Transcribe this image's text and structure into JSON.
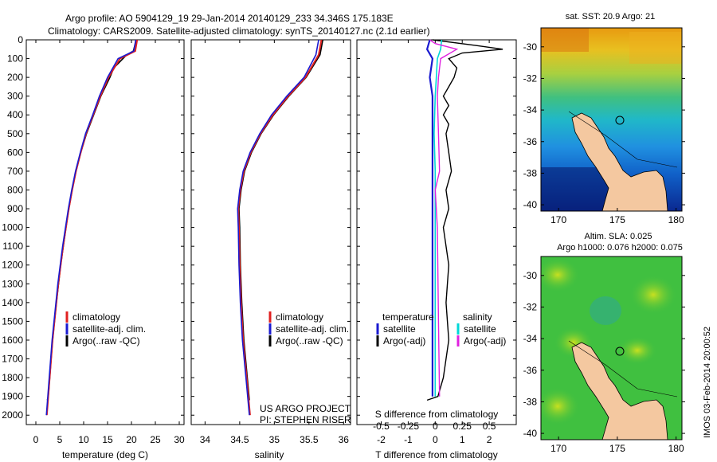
{
  "header": {
    "line1": "Argo profile: AO 5904129_19 29-Jan-2014 20140129_233 34.346S 175.183E",
    "line2": "Climatology: CARS2009. Satellite-adjusted climatology: synTS_20140127.nc (2.1d earlier)"
  },
  "colors": {
    "climatology": "#e02020",
    "satellite": "#1a1ad0",
    "argo": "#000000",
    "sal_satellite": "#00d8d8",
    "sal_argo": "#e020e0"
  },
  "panels": {
    "temperature": {
      "xlabel": "temperature (deg C)",
      "xticks": [
        "0",
        "5",
        "10",
        "15",
        "20",
        "25",
        "30"
      ],
      "legend": [
        "climatology",
        "satellite-adj. clim.",
        "Argo(..raw -QC)"
      ]
    },
    "salinity": {
      "xlabel": "salinity",
      "xticks": [
        "34",
        "34.5",
        "35",
        "35.5",
        "36"
      ],
      "legend": [
        "climatology",
        "satellite-adj. clim.",
        "Argo(..raw -QC)"
      ],
      "credit1": "US ARGO PROJECT",
      "credit2": "PI: STEPHEN RISER"
    },
    "difference": {
      "top_label": "S difference from climatology",
      "top_ticks": [
        "-0.5",
        "-0.25",
        "0",
        "0.25",
        "0.5"
      ],
      "xlabel": "T difference from climatology",
      "xticks": [
        "-2",
        "-1",
        "0",
        "1",
        "2"
      ],
      "legend_temp_title": "temperature",
      "legend_sal_title": "salinity",
      "legend": [
        "satellite",
        "Argo(-adj)",
        "satellite",
        "Argo(-adj)"
      ]
    },
    "depth_ticks": [
      "0",
      "100",
      "200",
      "300",
      "400",
      "500",
      "600",
      "700",
      "800",
      "900",
      "1000",
      "1100",
      "1200",
      "1300",
      "1400",
      "1500",
      "1600",
      "1700",
      "1800",
      "1900",
      "2000"
    ]
  },
  "maps": {
    "sst_title": "sat. SST: 20.9 Argo: 21",
    "sla_title1": "Altim. SLA: 0.025",
    "sla_title2": "Argo h1000: 0.076 h2000: 0.075",
    "lat_ticks": [
      "-30",
      "-32",
      "-34",
      "-36",
      "-38",
      "-40"
    ],
    "lon_ticks": [
      "170",
      "175",
      "180"
    ],
    "stamp": "IMOS 03-Feb-2014 20:00:52"
  },
  "chart_data": {
    "type": "line",
    "depth_range": [
      0,
      2050
    ],
    "temperature": {
      "xlim": [
        -2,
        31
      ],
      "climatology": {
        "depth": [
          0,
          60,
          100,
          200,
          300,
          400,
          500,
          600,
          700,
          800,
          900,
          1000,
          1100,
          1200,
          1300,
          1400,
          1500,
          1600,
          1700,
          1800,
          1900,
          2000
        ],
        "temp": [
          21.2,
          20.8,
          17.6,
          15.2,
          13.5,
          12.0,
          10.5,
          9.4,
          8.4,
          7.6,
          6.9,
          6.3,
          5.7,
          5.2,
          4.7,
          4.3,
          3.9,
          3.5,
          3.2,
          2.9,
          2.6,
          2.3
        ]
      },
      "satellite": {
        "depth": [
          0,
          60,
          100,
          200,
          300,
          400,
          500,
          600,
          700,
          800,
          900,
          1000,
          1100,
          1200,
          1300,
          1400,
          1500,
          1600,
          1700,
          1800,
          1900,
          2000
        ],
        "temp": [
          20.9,
          20.5,
          17.2,
          15.0,
          13.3,
          11.9,
          10.4,
          9.3,
          8.3,
          7.5,
          6.8,
          6.2,
          5.6,
          5.1,
          4.6,
          4.2,
          3.8,
          3.4,
          3.1,
          2.8,
          2.5,
          2.2
        ]
      },
      "argo": {
        "depth": [
          0,
          60,
          80,
          150,
          200,
          300,
          400,
          500,
          600,
          700,
          800,
          900,
          1000,
          1200,
          1400,
          1600,
          1800,
          1900,
          1920
        ],
        "temp": [
          21.0,
          20.4,
          19.0,
          16.3,
          15.5,
          13.6,
          12.1,
          10.6,
          9.4,
          8.4,
          7.6,
          6.9,
          6.3,
          5.2,
          4.3,
          3.5,
          2.9,
          2.6,
          2.4
        ]
      }
    },
    "salinity": {
      "xlim": [
        33.8,
        36.1
      ],
      "climatology": {
        "depth": [
          0,
          80,
          200,
          300,
          400,
          500,
          600,
          700,
          800,
          900,
          1000,
          1200,
          1400,
          1600,
          1800,
          2000
        ],
        "sal": [
          35.68,
          35.64,
          35.45,
          35.2,
          34.98,
          34.8,
          34.66,
          34.56,
          34.51,
          34.48,
          34.49,
          34.5,
          34.52,
          34.55,
          34.6,
          34.65
        ]
      },
      "satellite": {
        "depth": [
          0,
          80,
          200,
          300,
          400,
          500,
          600,
          700,
          800,
          900,
          1000,
          1200,
          1400,
          1600,
          1800,
          2000
        ],
        "sal": [
          35.64,
          35.6,
          35.43,
          35.18,
          34.96,
          34.79,
          34.65,
          34.55,
          34.5,
          34.47,
          34.48,
          34.49,
          34.51,
          34.54,
          34.59,
          34.64
        ]
      },
      "argo": {
        "depth": [
          0,
          80,
          200,
          300,
          400,
          500,
          600,
          700,
          800,
          900,
          1000,
          1200,
          1400,
          1600,
          1800,
          1920
        ],
        "sal": [
          35.7,
          35.66,
          35.46,
          35.21,
          34.99,
          34.81,
          34.67,
          34.57,
          34.52,
          34.49,
          34.5,
          34.51,
          34.53,
          34.56,
          34.61,
          34.64
        ]
      }
    },
    "difference": {
      "xlim": [
        -2.9,
        3.0
      ],
      "t_satellite": {
        "depth": [
          0,
          50,
          100,
          200,
          300,
          400,
          500,
          700,
          1000,
          1500,
          1900
        ],
        "dt": [
          -0.2,
          -0.3,
          -0.1,
          -0.2,
          -0.1,
          -0.1,
          -0.1,
          -0.1,
          -0.1,
          -0.1,
          -0.1
        ]
      },
      "t_argo": {
        "depth": [
          0,
          30,
          50,
          70,
          100,
          150,
          200,
          250,
          300,
          350,
          400,
          450,
          500,
          600,
          700,
          800,
          900,
          1000,
          1200,
          1400,
          1600,
          1800,
          1900,
          1920
        ],
        "dt": [
          -0.1,
          1.5,
          2.5,
          1.0,
          0.5,
          0.8,
          0.7,
          0.5,
          0.3,
          0.5,
          0.3,
          0.5,
          0.4,
          0.5,
          0.6,
          0.4,
          0.5,
          0.3,
          0.5,
          0.4,
          0.5,
          0.3,
          0.1,
          -0.3
        ]
      },
      "s_satellite": {
        "depth": [
          0,
          50,
          100,
          200,
          300,
          500,
          700,
          1000,
          1500,
          1900
        ],
        "ds": [
          0.06,
          0.05,
          0.02,
          0.01,
          0.0,
          -0.01,
          0.0,
          0.0,
          0.0,
          0.0
        ]
      },
      "s_argo": {
        "depth": [
          0,
          20,
          50,
          100,
          200,
          300,
          500,
          700,
          800,
          1000,
          1500,
          1900
        ],
        "ds": [
          -0.05,
          0.0,
          0.2,
          0.05,
          0.03,
          0.02,
          0.03,
          0.04,
          0.0,
          0.02,
          0.03,
          0.04
        ]
      }
    }
  }
}
